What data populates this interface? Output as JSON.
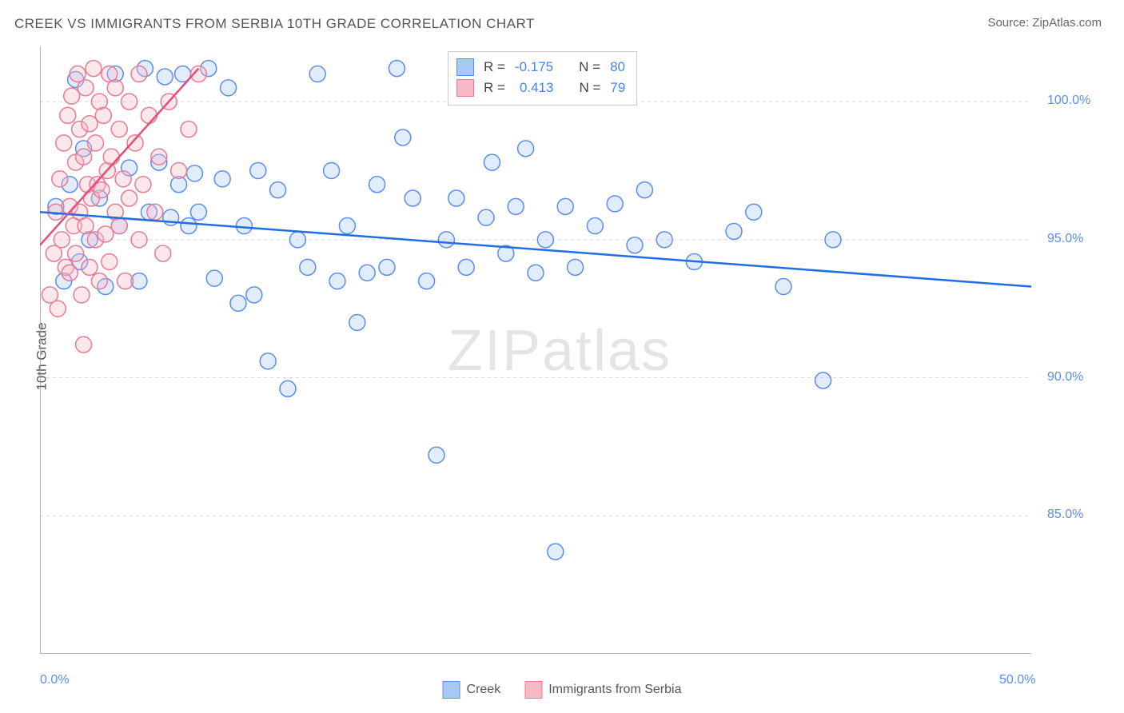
{
  "title": "CREEK VS IMMIGRANTS FROM SERBIA 10TH GRADE CORRELATION CHART",
  "source_label": "Source: ZipAtlas.com",
  "y_axis_label": "10th Grade",
  "watermark_bold": "ZIP",
  "watermark_rest": "atlas",
  "chart": {
    "type": "scatter",
    "xlim": [
      0,
      50
    ],
    "ylim": [
      80,
      102
    ],
    "x_ticks": [
      0,
      5,
      10,
      15,
      20,
      25,
      30,
      35,
      40,
      45,
      50
    ],
    "x_tick_labels": {
      "0": "0.0%",
      "50": "50.0%"
    },
    "y_ticks": [
      85,
      90,
      95,
      100
    ],
    "y_tick_labels": {
      "85": "85.0%",
      "90": "90.0%",
      "95": "95.0%",
      "100": "100.0%"
    },
    "background_color": "#ffffff",
    "grid_color": "#d8d8d8",
    "axis_color": "#9aa0a6",
    "marker_radius": 10,
    "marker_stroke_width": 1.5,
    "marker_fill_opacity": 0.35,
    "series": [
      {
        "id": "creek",
        "label": "Creek",
        "color_fill": "#a9c9f5",
        "color_stroke": "#5b8def",
        "trend": {
          "x1": 0,
          "y1": 96.0,
          "x2": 50,
          "y2": 93.3,
          "color": "#1f6fe0",
          "width": 2.5
        },
        "stats": {
          "R": "-0.175",
          "N": "80"
        },
        "points": [
          [
            0.8,
            96.2
          ],
          [
            1.2,
            93.5
          ],
          [
            1.5,
            97.0
          ],
          [
            1.8,
            100.8
          ],
          [
            2.0,
            94.2
          ],
          [
            2.2,
            98.3
          ],
          [
            2.5,
            95.0
          ],
          [
            3.0,
            96.5
          ],
          [
            3.3,
            93.3
          ],
          [
            3.8,
            101.0
          ],
          [
            4.0,
            95.5
          ],
          [
            4.5,
            97.6
          ],
          [
            5.0,
            93.5
          ],
          [
            5.3,
            101.2
          ],
          [
            5.5,
            96.0
          ],
          [
            6.0,
            97.8
          ],
          [
            6.3,
            100.9
          ],
          [
            6.6,
            95.8
          ],
          [
            7.0,
            97.0
          ],
          [
            7.2,
            101.0
          ],
          [
            7.5,
            95.5
          ],
          [
            7.8,
            97.4
          ],
          [
            8.0,
            96.0
          ],
          [
            8.5,
            101.2
          ],
          [
            8.8,
            93.6
          ],
          [
            9.2,
            97.2
          ],
          [
            9.5,
            100.5
          ],
          [
            10.0,
            92.7
          ],
          [
            10.3,
            95.5
          ],
          [
            10.8,
            93.0
          ],
          [
            11.0,
            97.5
          ],
          [
            11.5,
            90.6
          ],
          [
            12.0,
            96.8
          ],
          [
            12.5,
            89.6
          ],
          [
            13.0,
            95.0
          ],
          [
            13.5,
            94.0
          ],
          [
            14.0,
            101.0
          ],
          [
            14.7,
            97.5
          ],
          [
            15.0,
            93.5
          ],
          [
            15.5,
            95.5
          ],
          [
            16.0,
            92.0
          ],
          [
            16.5,
            93.8
          ],
          [
            17.0,
            97.0
          ],
          [
            17.5,
            94.0
          ],
          [
            18.0,
            101.2
          ],
          [
            18.3,
            98.7
          ],
          [
            18.8,
            96.5
          ],
          [
            19.5,
            93.5
          ],
          [
            20.0,
            87.2
          ],
          [
            20.5,
            95.0
          ],
          [
            21.0,
            96.5
          ],
          [
            21.5,
            94.0
          ],
          [
            22.2,
            101.0
          ],
          [
            22.5,
            95.8
          ],
          [
            22.8,
            97.8
          ],
          [
            23.5,
            94.5
          ],
          [
            24.0,
            96.2
          ],
          [
            24.5,
            98.3
          ],
          [
            25.0,
            93.8
          ],
          [
            25.5,
            95.0
          ],
          [
            26.0,
            83.7
          ],
          [
            26.5,
            96.2
          ],
          [
            27.0,
            94.0
          ],
          [
            28.0,
            95.5
          ],
          [
            29.0,
            96.3
          ],
          [
            30.0,
            94.8
          ],
          [
            30.5,
            96.8
          ],
          [
            31.5,
            95.0
          ],
          [
            33.0,
            94.2
          ],
          [
            35.0,
            95.3
          ],
          [
            36.0,
            96.0
          ],
          [
            37.5,
            93.3
          ],
          [
            39.5,
            89.9
          ],
          [
            40.0,
            95.0
          ]
        ]
      },
      {
        "id": "serbia",
        "label": "Immigrants from Serbia",
        "color_fill": "#f7b9c4",
        "color_stroke": "#e87a94",
        "trend": {
          "x1": 0,
          "y1": 94.8,
          "x2": 8.0,
          "y2": 101.2,
          "color": "#e64c78",
          "width": 2.5
        },
        "stats": {
          "R": "0.413",
          "N": "79"
        },
        "points": [
          [
            0.5,
            93.0
          ],
          [
            0.7,
            94.5
          ],
          [
            0.8,
            96.0
          ],
          [
            0.9,
            92.5
          ],
          [
            1.0,
            97.2
          ],
          [
            1.1,
            95.0
          ],
          [
            1.2,
            98.5
          ],
          [
            1.3,
            94.0
          ],
          [
            1.4,
            99.5
          ],
          [
            1.5,
            96.2
          ],
          [
            1.5,
            93.8
          ],
          [
            1.6,
            100.2
          ],
          [
            1.7,
            95.5
          ],
          [
            1.8,
            97.8
          ],
          [
            1.8,
            94.5
          ],
          [
            1.9,
            101.0
          ],
          [
            2.0,
            96.0
          ],
          [
            2.0,
            99.0
          ],
          [
            2.1,
            93.0
          ],
          [
            2.2,
            98.0
          ],
          [
            2.3,
            95.5
          ],
          [
            2.3,
            100.5
          ],
          [
            2.4,
            97.0
          ],
          [
            2.5,
            94.0
          ],
          [
            2.5,
            99.2
          ],
          [
            2.6,
            96.5
          ],
          [
            2.7,
            101.2
          ],
          [
            2.8,
            95.0
          ],
          [
            2.8,
            98.5
          ],
          [
            2.9,
            97.0
          ],
          [
            3.0,
            100.0
          ],
          [
            3.0,
            93.5
          ],
          [
            3.1,
            96.8
          ],
          [
            3.2,
            99.5
          ],
          [
            3.3,
            95.2
          ],
          [
            3.4,
            97.5
          ],
          [
            3.5,
            101.0
          ],
          [
            3.5,
            94.2
          ],
          [
            3.6,
            98.0
          ],
          [
            3.8,
            96.0
          ],
          [
            3.8,
            100.5
          ],
          [
            4.0,
            95.5
          ],
          [
            4.0,
            99.0
          ],
          [
            4.2,
            97.2
          ],
          [
            4.3,
            93.5
          ],
          [
            4.5,
            100.0
          ],
          [
            4.5,
            96.5
          ],
          [
            4.8,
            98.5
          ],
          [
            5.0,
            95.0
          ],
          [
            5.0,
            101.0
          ],
          [
            5.2,
            97.0
          ],
          [
            5.5,
            99.5
          ],
          [
            5.8,
            96.0
          ],
          [
            6.0,
            98.0
          ],
          [
            6.2,
            94.5
          ],
          [
            6.5,
            100.0
          ],
          [
            7.0,
            97.5
          ],
          [
            7.5,
            99.0
          ],
          [
            8.0,
            101.0
          ],
          [
            2.2,
            91.2
          ]
        ]
      }
    ]
  },
  "stats_box": {
    "r_label": "R =",
    "n_label": "N ="
  },
  "bottom_legend": [
    {
      "swatch_fill": "#a9c9f5",
      "swatch_stroke": "#5b8def",
      "label": "Creek"
    },
    {
      "swatch_fill": "#f7b9c4",
      "swatch_stroke": "#e87a94",
      "label": "Immigrants from Serbia"
    }
  ]
}
